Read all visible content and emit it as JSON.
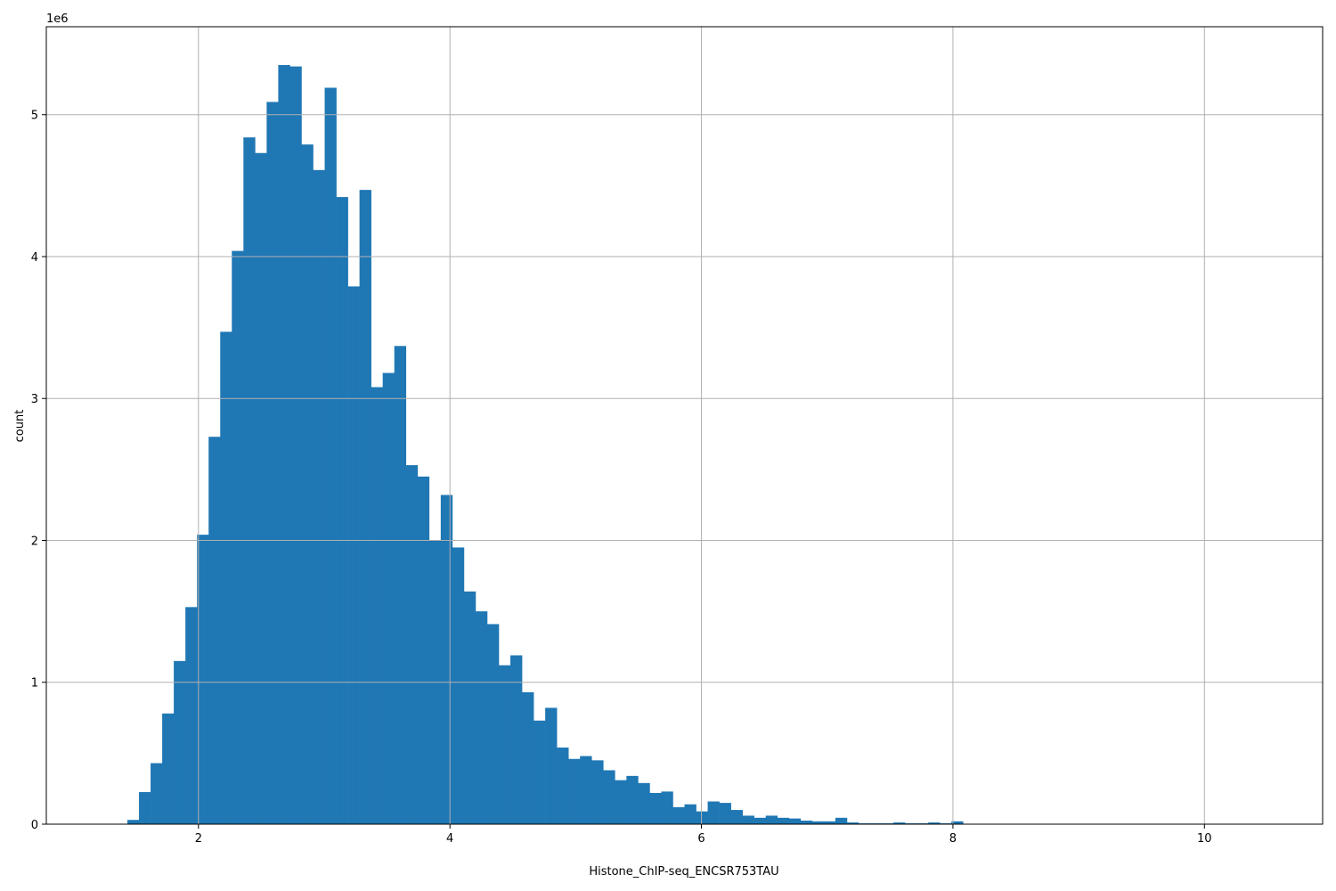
{
  "chart_data": {
    "type": "bar",
    "subtype": "histogram",
    "title": "",
    "xlabel": "Histone_ChIP-seq_ENCSR753TAU",
    "ylabel": "count",
    "y_offset_label": "1e6",
    "y_unit_multiplier": 1000000,
    "xlim": [
      0.79,
      10.94
    ],
    "ylim": [
      0,
      5.62
    ],
    "x_ticks": [
      2,
      4,
      6,
      8,
      10
    ],
    "y_ticks": [
      0,
      1,
      2,
      3,
      4,
      5
    ],
    "grid": true,
    "bar_color": "#1f77b4",
    "grid_color": "#b0b0b0",
    "bin_start": 1.25,
    "bin_width": 0.0923,
    "values": [
      0,
      0,
      0.03,
      0.226,
      0.43,
      0.78,
      1.15,
      1.53,
      2.04,
      2.73,
      3.47,
      4.04,
      4.84,
      4.73,
      5.09,
      5.35,
      5.34,
      4.79,
      4.61,
      5.19,
      4.42,
      3.79,
      4.47,
      3.08,
      3.18,
      3.37,
      2.53,
      2.45,
      2.0,
      2.32,
      1.95,
      1.64,
      1.5,
      1.41,
      1.12,
      1.19,
      0.93,
      0.73,
      0.82,
      0.54,
      0.46,
      0.48,
      0.45,
      0.38,
      0.31,
      0.34,
      0.29,
      0.22,
      0.23,
      0.12,
      0.14,
      0.09,
      0.16,
      0.15,
      0.1,
      0.06,
      0.045,
      0.06,
      0.045,
      0.04,
      0.025,
      0.02,
      0.02,
      0.045,
      0.012,
      0.006,
      0.006,
      0.006,
      0.012,
      0.006,
      0.006,
      0.012,
      0.006,
      0.02
    ]
  }
}
